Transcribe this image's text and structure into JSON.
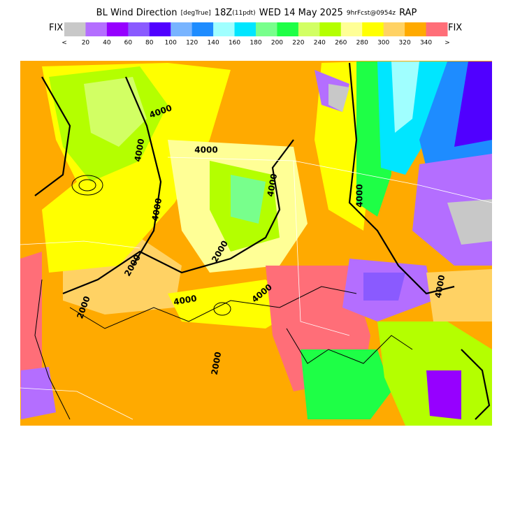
{
  "header": {
    "parts": [
      "BL Wind Direction",
      "[degTrue]",
      "18Z",
      "(11pdt)",
      "WED 14 May 2025",
      "9hrFcst@0954z",
      "RAP"
    ]
  },
  "legend": {
    "left_label": "FIX",
    "right_label": "FIX",
    "colors": [
      "#c8c8c8",
      "#b46eff",
      "#9600ff",
      "#8a5aff",
      "#5000ff",
      "#78b4ff",
      "#1e8cff",
      "#a0ffff",
      "#00e6ff",
      "#78ff8c",
      "#1eff46",
      "#d2ff64",
      "#b4ff00",
      "#ffff96",
      "#ffff00",
      "#ffd264",
      "#ffaa00",
      "#ff6e78"
    ],
    "labels": [
      "<",
      "20",
      "40",
      "60",
      "80",
      "100",
      "120",
      "140",
      "160",
      "180",
      "200",
      "220",
      "240",
      "260",
      "280",
      "300",
      "320",
      "340",
      ">"
    ]
  },
  "map": {
    "contour_labels": [
      "4000",
      "4000",
      "2000",
      "4000",
      "2000",
      "4000",
      "2000",
      "4000",
      "4000",
      "4000",
      "4000",
      "2000",
      "4000"
    ]
  }
}
